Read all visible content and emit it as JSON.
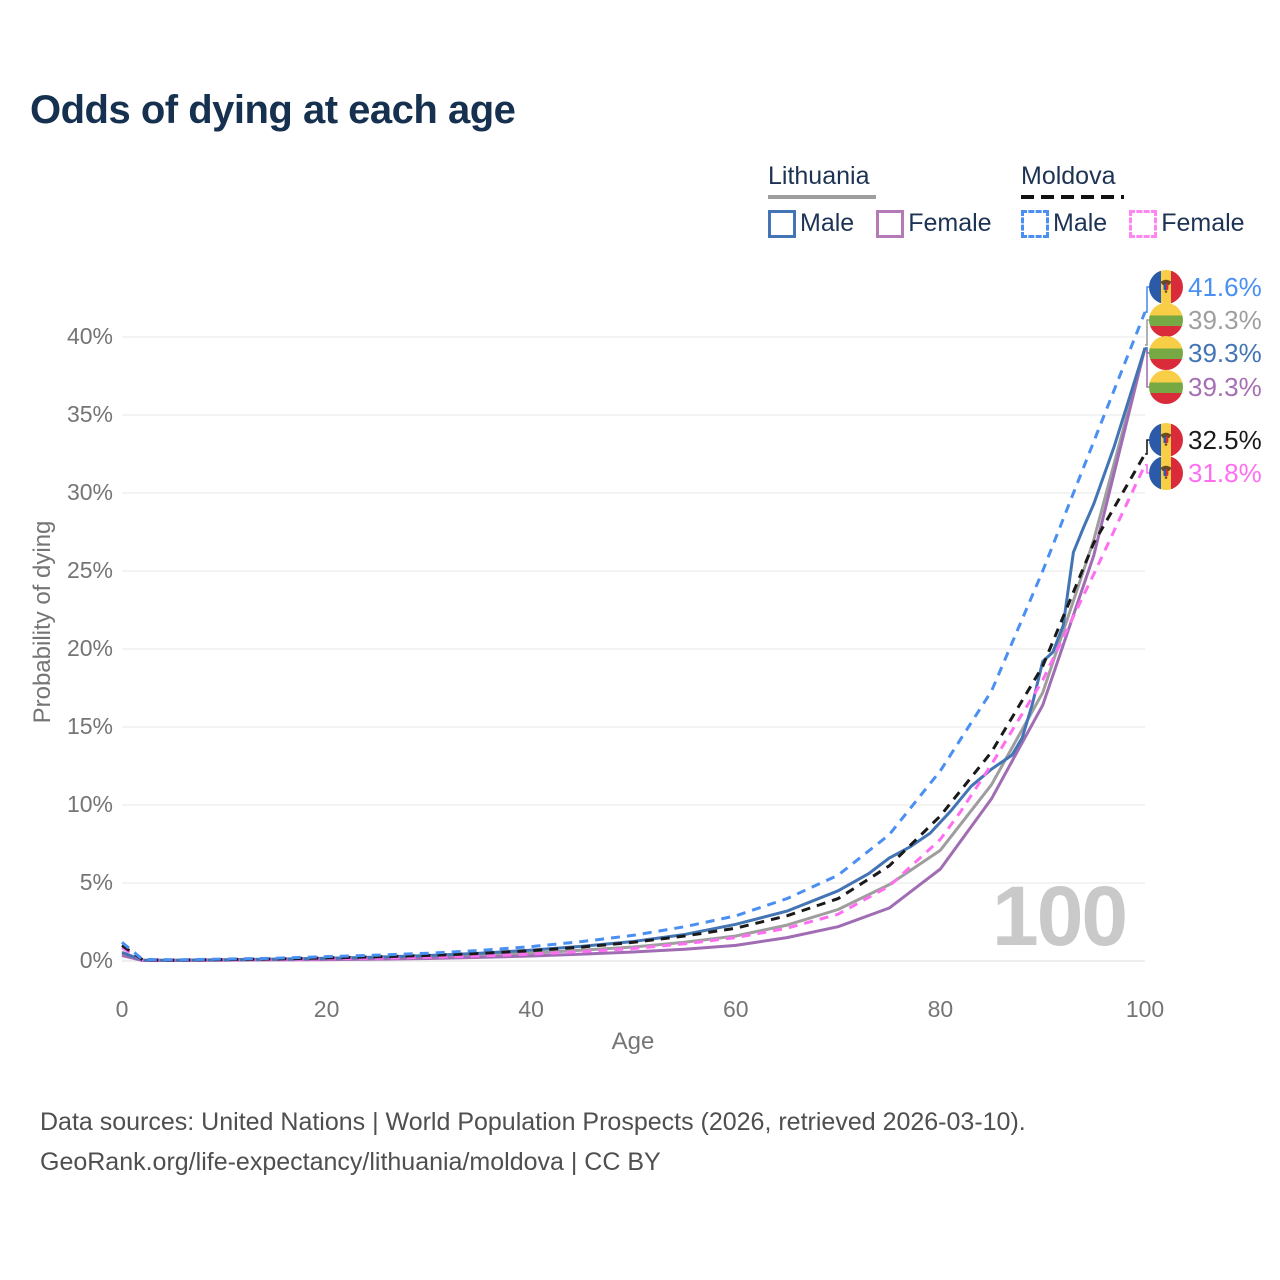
{
  "title": "Odds of dying at each age",
  "legend": {
    "lithuania": {
      "label": "Lithuania",
      "male": "Male",
      "female": "Female"
    },
    "moldova": {
      "label": "Moldova",
      "male": "Male",
      "female": "Female"
    }
  },
  "axes": {
    "y_title": "Probability of dying",
    "x_title": "Age"
  },
  "watermark": "100",
  "footer": {
    "line1": "Data sources: United Nations | World Population Prospects (2026, retrieved 2026-03-10).",
    "line2": "GeoRank.org/life-expectancy/lithuania/moldova | CC BY"
  },
  "colors": {
    "title": "#16314f",
    "legend_text": "#1d3354",
    "lithuania_underline": "#9e9e9e",
    "moldova_underline": "#111111",
    "grid": "#ececec",
    "tick_text": "#757575",
    "watermark": "#c9c9c9"
  },
  "chart_data": {
    "type": "line",
    "title": "Odds of dying at each age",
    "xlabel": "Age",
    "ylabel": "Probability of dying",
    "xlim": [
      0,
      100
    ],
    "ylim": [
      0,
      40
    ],
    "x_ticks": [
      0,
      20,
      40,
      60,
      80,
      100
    ],
    "y_ticks": [
      0,
      5,
      10,
      15,
      20,
      25,
      30,
      35,
      40
    ],
    "y_tick_suffix": "%",
    "grid": true,
    "legend_position": "top-right",
    "series": [
      {
        "id": "lt-both",
        "name": "Lithuania (both sexes)",
        "color": "#9e9e9e",
        "style": "solid",
        "points": [
          [
            0,
            0.45
          ],
          [
            2,
            0.05
          ],
          [
            5,
            0.04
          ],
          [
            10,
            0.06
          ],
          [
            15,
            0.1
          ],
          [
            20,
            0.14
          ],
          [
            25,
            0.19
          ],
          [
            30,
            0.26
          ],
          [
            35,
            0.36
          ],
          [
            40,
            0.5
          ],
          [
            45,
            0.7
          ],
          [
            50,
            0.9
          ],
          [
            55,
            1.2
          ],
          [
            60,
            1.6
          ],
          [
            65,
            2.3
          ],
          [
            70,
            3.3
          ],
          [
            75,
            4.9
          ],
          [
            80,
            7.1
          ],
          [
            85,
            11.3
          ],
          [
            90,
            17.2
          ],
          [
            95,
            27.0
          ],
          [
            100,
            39.3
          ]
        ]
      },
      {
        "id": "lt-female",
        "name": "Lithuania Female",
        "color": "#a06db4",
        "style": "solid",
        "points": [
          [
            0,
            0.35
          ],
          [
            2,
            0.03
          ],
          [
            5,
            0.03
          ],
          [
            10,
            0.05
          ],
          [
            15,
            0.07
          ],
          [
            20,
            0.09
          ],
          [
            25,
            0.12
          ],
          [
            30,
            0.16
          ],
          [
            35,
            0.23
          ],
          [
            40,
            0.32
          ],
          [
            45,
            0.44
          ],
          [
            50,
            0.58
          ],
          [
            55,
            0.75
          ],
          [
            60,
            1.0
          ],
          [
            65,
            1.5
          ],
          [
            70,
            2.2
          ],
          [
            75,
            3.4
          ],
          [
            80,
            5.9
          ],
          [
            85,
            10.4
          ],
          [
            90,
            16.4
          ],
          [
            95,
            26.0
          ],
          [
            100,
            39.3
          ]
        ]
      },
      {
        "id": "lt-male",
        "name": "Lithuania Male",
        "color": "#4374b4",
        "style": "solid",
        "points": [
          [
            0,
            0.55
          ],
          [
            2,
            0.06
          ],
          [
            5,
            0.05
          ],
          [
            10,
            0.08
          ],
          [
            15,
            0.12
          ],
          [
            20,
            0.18
          ],
          [
            25,
            0.25
          ],
          [
            30,
            0.35
          ],
          [
            35,
            0.5
          ],
          [
            40,
            0.7
          ],
          [
            45,
            0.95
          ],
          [
            50,
            1.25
          ],
          [
            55,
            1.7
          ],
          [
            60,
            2.35
          ],
          [
            65,
            3.2
          ],
          [
            70,
            4.5
          ],
          [
            73,
            5.6
          ],
          [
            75,
            6.6
          ],
          [
            77,
            7.3
          ],
          [
            79,
            8.2
          ],
          [
            81,
            9.6
          ],
          [
            83,
            11.2
          ],
          [
            85,
            12.3
          ],
          [
            87,
            13.2
          ],
          [
            88,
            14.3
          ],
          [
            89,
            16.5
          ],
          [
            90,
            19.2
          ],
          [
            91,
            19.8
          ],
          [
            92,
            21.5
          ],
          [
            93,
            26.2
          ],
          [
            94,
            27.8
          ],
          [
            95,
            29.3
          ],
          [
            97,
            33.0
          ],
          [
            100,
            39.3
          ]
        ]
      },
      {
        "id": "md-female",
        "name": "Moldova Female",
        "color": "#ff6ef0",
        "style": "dashed",
        "points": [
          [
            0,
            0.85
          ],
          [
            2,
            0.06
          ],
          [
            5,
            0.05
          ],
          [
            10,
            0.07
          ],
          [
            15,
            0.1
          ],
          [
            20,
            0.14
          ],
          [
            25,
            0.18
          ],
          [
            30,
            0.24
          ],
          [
            35,
            0.33
          ],
          [
            40,
            0.45
          ],
          [
            45,
            0.6
          ],
          [
            50,
            0.8
          ],
          [
            55,
            1.1
          ],
          [
            60,
            1.5
          ],
          [
            65,
            2.1
          ],
          [
            70,
            3.0
          ],
          [
            75,
            4.8
          ],
          [
            80,
            7.8
          ],
          [
            82,
            9.6
          ],
          [
            85,
            12.6
          ],
          [
            90,
            18.0
          ],
          [
            95,
            24.8
          ],
          [
            100,
            31.8
          ]
        ]
      },
      {
        "id": "md-both",
        "name": "Moldova (both sexes)",
        "color": "#1a1a1a",
        "style": "dashed",
        "points": [
          [
            0,
            1.0
          ],
          [
            2,
            0.08
          ],
          [
            5,
            0.06
          ],
          [
            10,
            0.09
          ],
          [
            15,
            0.13
          ],
          [
            20,
            0.2
          ],
          [
            25,
            0.27
          ],
          [
            30,
            0.36
          ],
          [
            35,
            0.49
          ],
          [
            40,
            0.66
          ],
          [
            45,
            0.9
          ],
          [
            50,
            1.2
          ],
          [
            55,
            1.6
          ],
          [
            60,
            2.1
          ],
          [
            65,
            2.9
          ],
          [
            70,
            4.0
          ],
          [
            75,
            6.1
          ],
          [
            80,
            9.3
          ],
          [
            85,
            13.4
          ],
          [
            90,
            18.9
          ],
          [
            95,
            26.8
          ],
          [
            100,
            32.5
          ]
        ]
      },
      {
        "id": "md-male",
        "name": "Moldova Male",
        "color": "#4a8ff2",
        "style": "dashed",
        "points": [
          [
            0,
            1.2
          ],
          [
            2,
            0.1
          ],
          [
            5,
            0.08
          ],
          [
            10,
            0.12
          ],
          [
            15,
            0.18
          ],
          [
            20,
            0.28
          ],
          [
            25,
            0.38
          ],
          [
            30,
            0.5
          ],
          [
            35,
            0.68
          ],
          [
            40,
            0.92
          ],
          [
            45,
            1.25
          ],
          [
            50,
            1.65
          ],
          [
            55,
            2.2
          ],
          [
            60,
            2.9
          ],
          [
            65,
            4.0
          ],
          [
            70,
            5.5
          ],
          [
            75,
            8.1
          ],
          [
            80,
            12.2
          ],
          [
            85,
            17.3
          ],
          [
            90,
            25.0
          ],
          [
            95,
            33.3
          ],
          [
            100,
            41.6
          ]
        ]
      }
    ],
    "end_labels": [
      {
        "series": "md-male",
        "country": "Moldova",
        "flag": "moldova-flag-icon",
        "text": "41.6%",
        "value": 41.6,
        "color": "#4a8ff2"
      },
      {
        "series": "lt-both",
        "country": "Lithuania",
        "flag": "lithuania-flag-icon",
        "text": "39.3%",
        "value": 39.3,
        "color": "#9e9e9e"
      },
      {
        "series": "lt-male",
        "country": "Lithuania",
        "flag": "lithuania-flag-icon",
        "text": "39.3%",
        "value": 39.3,
        "color": "#4374b4"
      },
      {
        "series": "lt-female",
        "country": "Lithuania",
        "flag": "lithuania-flag-icon",
        "text": "39.3%",
        "value": 39.3,
        "color": "#a66fb5"
      },
      {
        "series": "md-both",
        "country": "Moldova",
        "flag": "moldova-flag-icon",
        "text": "32.5%",
        "value": 32.5,
        "color": "#1a1a1a"
      },
      {
        "series": "md-female",
        "country": "Moldova",
        "flag": "moldova-flag-icon",
        "text": "31.8%",
        "value": 31.8,
        "color": "#ff6ef0"
      }
    ]
  }
}
